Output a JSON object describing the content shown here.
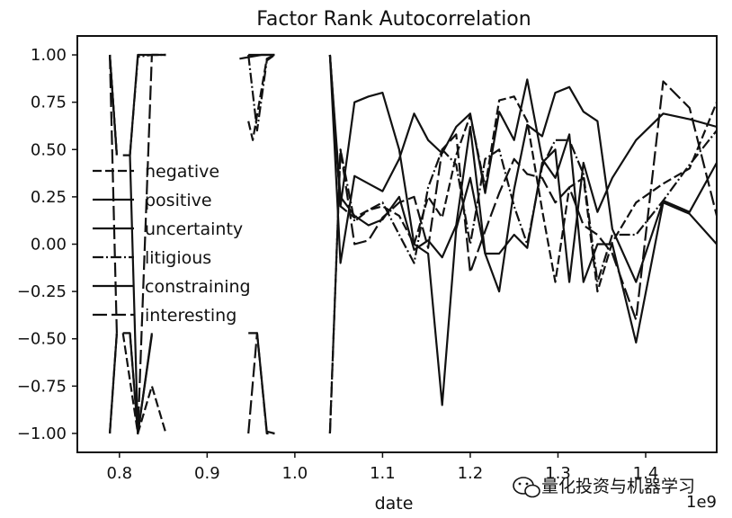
{
  "chart_data": {
    "type": "line",
    "title": "Factor Rank Autocorrelation",
    "xlabel": "date",
    "ylabel": "",
    "x_offset_label": "1e9",
    "xlim": [
      0.752,
      1.481
    ],
    "ylim": [
      -1.1,
      1.1
    ],
    "x_ticks": [
      0.8,
      0.9,
      1.0,
      1.1,
      1.2,
      1.3,
      1.4
    ],
    "x_tick_labels": [
      "0.8",
      "0.9",
      "1.0",
      "1.1",
      "1.2",
      "1.3",
      "1.4"
    ],
    "y_ticks": [
      1.0,
      0.75,
      0.5,
      0.25,
      0.0,
      -0.25,
      -0.5,
      -0.75,
      -1.0
    ],
    "y_tick_labels": [
      "1.00",
      "0.75",
      "0.50",
      "0.25",
      "0.00",
      "−0.25",
      "−0.50",
      "−0.75",
      "−1.00"
    ],
    "grid": false,
    "legend_position": "center-left",
    "series": [
      {
        "name": "negative",
        "dash": "10,4",
        "points": [
          [
            0.789,
            1.0
          ],
          [
            0.797,
            0.47
          ],
          null,
          [
            0.804,
            -0.47
          ],
          [
            0.821,
            -1.0
          ],
          [
            0.837,
            -0.75
          ],
          [
            0.853,
            -1.0
          ],
          null,
          [
            0.947,
            0.65
          ],
          [
            0.952,
            0.55
          ],
          [
            0.968,
            0.98
          ],
          [
            0.977,
            1.0
          ],
          null,
          [
            1.04,
            1.0
          ],
          [
            1.052,
            0.2
          ],
          [
            1.068,
            0.14
          ],
          [
            1.084,
            0.18
          ],
          [
            1.1,
            0.2
          ],
          [
            1.119,
            0.15
          ],
          [
            1.136,
            0.0
          ],
          [
            1.152,
            0.25
          ],
          [
            1.168,
            0.14
          ],
          [
            1.184,
            0.47
          ],
          [
            1.2,
            0.68
          ],
          [
            1.217,
            0.3
          ],
          [
            1.233,
            0.76
          ],
          [
            1.25,
            0.78
          ],
          [
            1.265,
            0.65
          ],
          [
            1.282,
            0.18
          ],
          [
            1.297,
            -0.2
          ],
          [
            1.313,
            0.3
          ],
          [
            1.329,
            0.35
          ],
          [
            1.345,
            -0.25
          ],
          [
            1.362,
            0.01
          ],
          [
            1.389,
            0.22
          ],
          [
            1.42,
            0.32
          ],
          [
            1.45,
            0.4
          ],
          [
            1.481,
            0.75
          ]
        ]
      },
      {
        "name": "positive",
        "dash": "",
        "points": [
          [
            0.789,
            1.0
          ],
          [
            0.797,
            0.47
          ],
          null,
          [
            0.812,
            0.47
          ],
          [
            0.821,
            1.0
          ],
          [
            0.837,
            1.0
          ],
          [
            0.853,
            1.0
          ],
          null,
          [
            0.937,
            0.98
          ],
          [
            0.962,
            1.0
          ],
          [
            0.977,
            1.0
          ],
          null,
          [
            1.04,
            1.0
          ],
          [
            1.052,
            0.2
          ],
          [
            1.068,
            0.75
          ],
          [
            1.084,
            0.78
          ],
          [
            1.1,
            0.8
          ],
          [
            1.119,
            0.5
          ],
          [
            1.136,
            0.0
          ],
          [
            1.152,
            -0.05
          ],
          [
            1.168,
            -0.85
          ],
          [
            1.184,
            0.08
          ],
          [
            1.2,
            0.35
          ],
          [
            1.217,
            -0.05
          ],
          [
            1.233,
            -0.25
          ],
          [
            1.25,
            0.29
          ],
          [
            1.265,
            0.63
          ],
          [
            1.282,
            0.57
          ],
          [
            1.297,
            0.8
          ],
          [
            1.313,
            0.83
          ],
          [
            1.329,
            0.7
          ],
          [
            1.345,
            0.65
          ],
          [
            1.362,
            0.08
          ],
          [
            1.389,
            -0.2
          ],
          [
            1.42,
            0.23
          ],
          [
            1.45,
            0.17
          ],
          [
            1.481,
            0.43
          ]
        ]
      },
      {
        "name": "uncertainty",
        "dash": "",
        "points": [
          [
            0.789,
            1.0
          ],
          [
            0.797,
            0.47
          ],
          null,
          [
            0.804,
            -0.47
          ],
          [
            0.812,
            -0.47
          ],
          [
            0.821,
            -1.0
          ],
          [
            0.837,
            -0.48
          ],
          null,
          [
            0.947,
            -0.47
          ],
          [
            0.957,
            -0.47
          ],
          [
            0.968,
            -0.99
          ],
          [
            0.977,
            -1.0
          ],
          null,
          [
            1.04,
            1.0
          ],
          [
            1.052,
            -0.1
          ],
          [
            1.068,
            0.36
          ],
          [
            1.084,
            0.32
          ],
          [
            1.1,
            0.28
          ],
          [
            1.119,
            0.45
          ],
          [
            1.136,
            0.69
          ],
          [
            1.152,
            0.55
          ],
          [
            1.168,
            0.48
          ],
          [
            1.184,
            0.62
          ],
          [
            1.2,
            0.69
          ],
          [
            1.217,
            0.27
          ],
          [
            1.233,
            0.7
          ],
          [
            1.25,
            0.55
          ],
          [
            1.265,
            0.87
          ],
          [
            1.282,
            0.45
          ],
          [
            1.297,
            0.35
          ],
          [
            1.313,
            0.58
          ],
          [
            1.329,
            -0.2
          ],
          [
            1.345,
            0.0
          ],
          [
            1.362,
            0.0
          ],
          [
            1.389,
            -0.52
          ],
          [
            1.42,
            0.22
          ],
          [
            1.45,
            0.16
          ],
          [
            1.481,
            0.0
          ]
        ]
      },
      {
        "name": "litigious",
        "dash": "12,3,2,3",
        "points": [
          [
            0.789,
            -1.0
          ],
          [
            0.797,
            -0.47
          ],
          null,
          [
            0.812,
            0.47
          ],
          [
            0.821,
            0.99
          ],
          [
            0.837,
            1.0
          ],
          [
            0.853,
            1.0
          ],
          null,
          [
            0.947,
            1.0
          ],
          [
            0.957,
            0.6
          ],
          [
            0.968,
            0.97
          ],
          [
            0.977,
            1.0
          ],
          null,
          [
            1.04,
            -1.0
          ],
          [
            1.052,
            0.5
          ],
          [
            1.068,
            0.12
          ],
          [
            1.084,
            0.18
          ],
          [
            1.1,
            0.22
          ],
          [
            1.119,
            0.05
          ],
          [
            1.136,
            -0.1
          ],
          [
            1.152,
            0.3
          ],
          [
            1.168,
            0.5
          ],
          [
            1.184,
            0.42
          ],
          [
            1.2,
            0.0
          ],
          [
            1.217,
            0.45
          ],
          [
            1.233,
            0.5
          ],
          [
            1.25,
            0.2
          ],
          [
            1.265,
            0.0
          ],
          [
            1.282,
            0.41
          ],
          [
            1.297,
            0.55
          ],
          [
            1.313,
            0.55
          ],
          [
            1.329,
            0.37
          ],
          [
            1.345,
            -0.2
          ],
          [
            1.362,
            0.05
          ],
          [
            1.389,
            0.05
          ],
          [
            1.42,
            0.23
          ],
          [
            1.45,
            0.42
          ],
          [
            1.481,
            0.6
          ]
        ]
      },
      {
        "name": "constraining",
        "dash": "",
        "points": [
          [
            0.789,
            -1.0
          ],
          [
            0.797,
            -0.47
          ],
          null,
          [
            0.804,
            0.47
          ],
          [
            0.812,
            0.47
          ],
          [
            0.821,
            -1.0
          ],
          [
            0.837,
            -0.47
          ],
          null,
          [
            0.947,
            1.0
          ],
          [
            0.957,
            1.0
          ],
          [
            0.968,
            1.0
          ],
          [
            0.977,
            1.0
          ],
          null,
          [
            1.04,
            1.0
          ],
          [
            1.052,
            0.25
          ],
          [
            1.068,
            0.15
          ],
          [
            1.084,
            0.1
          ],
          [
            1.1,
            0.13
          ],
          [
            1.119,
            0.25
          ],
          [
            1.136,
            -0.03
          ],
          [
            1.152,
            0.02
          ],
          [
            1.168,
            -0.07
          ],
          [
            1.184,
            0.1
          ],
          [
            1.2,
            0.62
          ],
          [
            1.217,
            -0.05
          ],
          [
            1.233,
            -0.05
          ],
          [
            1.25,
            0.05
          ],
          [
            1.265,
            -0.02
          ],
          [
            1.282,
            0.43
          ],
          [
            1.297,
            0.5
          ],
          [
            1.313,
            -0.2
          ],
          [
            1.329,
            0.43
          ],
          [
            1.345,
            0.17
          ],
          [
            1.362,
            0.35
          ],
          [
            1.389,
            0.55
          ],
          [
            1.42,
            0.69
          ],
          [
            1.45,
            0.66
          ],
          [
            1.481,
            0.62
          ]
        ]
      },
      {
        "name": "interesting",
        "dash": "16,5",
        "points": [
          [
            0.789,
            1.0
          ],
          [
            0.797,
            -0.47
          ],
          null,
          [
            0.812,
            -0.47
          ],
          [
            0.821,
            -1.0
          ],
          [
            0.837,
            1.0
          ],
          [
            0.853,
            1.0
          ],
          null,
          [
            0.947,
            -1.0
          ],
          [
            0.957,
            -0.47
          ],
          [
            0.968,
            -1.0
          ],
          [
            0.977,
            -1.0
          ],
          null,
          [
            1.04,
            -1.0
          ],
          [
            1.052,
            0.5
          ],
          [
            1.068,
            0.0
          ],
          [
            1.084,
            0.02
          ],
          [
            1.1,
            0.14
          ],
          [
            1.119,
            0.22
          ],
          [
            1.136,
            0.25
          ],
          [
            1.152,
            -0.02
          ],
          [
            1.168,
            0.5
          ],
          [
            1.184,
            0.58
          ],
          [
            1.2,
            -0.15
          ],
          [
            1.217,
            0.07
          ],
          [
            1.233,
            0.27
          ],
          [
            1.25,
            0.45
          ],
          [
            1.265,
            0.37
          ],
          [
            1.282,
            0.35
          ],
          [
            1.297,
            0.22
          ],
          [
            1.313,
            0.3
          ],
          [
            1.329,
            0.1
          ],
          [
            1.345,
            0.05
          ],
          [
            1.362,
            -0.05
          ],
          [
            1.389,
            -0.4
          ],
          [
            1.42,
            0.86
          ],
          [
            1.45,
            0.72
          ],
          [
            1.481,
            0.15
          ]
        ]
      }
    ]
  },
  "watermark": {
    "text": "量化投资与机器学习",
    "icon": "wechat-logo-icon"
  },
  "colors": {
    "line": "#111111",
    "background": "#ffffff"
  }
}
